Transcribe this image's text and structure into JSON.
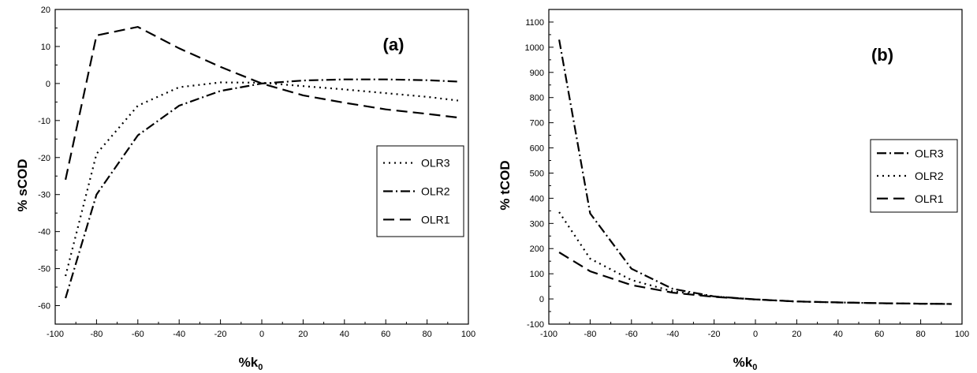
{
  "chart_data": [
    {
      "type": "line",
      "panel_label": "(a)",
      "xlabel": "%k0",
      "ylabel": "% sCOD",
      "xlim": [
        -100,
        100
      ],
      "ylim": [
        -65,
        20
      ],
      "xticks": [
        -100,
        -80,
        -60,
        -40,
        -20,
        0,
        20,
        40,
        60,
        80,
        100
      ],
      "yticks": [
        -60,
        -50,
        -40,
        -30,
        -20,
        -10,
        0,
        10,
        20
      ],
      "legend_position": "right",
      "series": [
        {
          "name": "OLR3",
          "style": "dotted",
          "x": [
            -95,
            -80,
            -60,
            -40,
            -20,
            0,
            20,
            40,
            60,
            80,
            95
          ],
          "y": [
            -52,
            -19,
            -6,
            -1,
            0.3,
            0.2,
            -0.7,
            -1.6,
            -2.6,
            -3.6,
            -4.6
          ]
        },
        {
          "name": "OLR2",
          "style": "dashdot",
          "x": [
            -95,
            -80,
            -60,
            -40,
            -20,
            0,
            20,
            40,
            60,
            80,
            95
          ],
          "y": [
            -58,
            -30,
            -14,
            -6,
            -2,
            0,
            0.8,
            1.1,
            1.1,
            0.9,
            0.5
          ]
        },
        {
          "name": "OLR1",
          "style": "dashed",
          "x": [
            -95,
            -80,
            -60,
            -40,
            -20,
            0,
            20,
            40,
            60,
            80,
            95
          ],
          "y": [
            -26,
            13,
            15.3,
            9.5,
            4.5,
            0,
            -3.2,
            -5.2,
            -7,
            -8.2,
            -9.2
          ]
        }
      ]
    },
    {
      "type": "line",
      "panel_label": "(b)",
      "xlabel": "%k0",
      "ylabel": "% tCOD",
      "xlim": [
        -100,
        100
      ],
      "ylim": [
        -100,
        1150
      ],
      "xticks": [
        -100,
        -80,
        -60,
        -40,
        -20,
        0,
        20,
        40,
        60,
        80,
        100
      ],
      "yticks": [
        -100,
        0,
        100,
        200,
        300,
        400,
        500,
        600,
        700,
        800,
        900,
        1000,
        1100
      ],
      "legend_position": "right",
      "series": [
        {
          "name": "OLR3",
          "style": "dashdot",
          "x": [
            -95,
            -80,
            -60,
            -40,
            -20,
            0,
            20,
            40,
            60,
            80,
            95
          ],
          "y": [
            1030,
            340,
            120,
            40,
            10,
            -2,
            -10,
            -14,
            -17,
            -19,
            -20
          ]
        },
        {
          "name": "OLR2",
          "style": "dotted",
          "x": [
            -95,
            -80,
            -60,
            -40,
            -20,
            0,
            20,
            40,
            60,
            80,
            95
          ],
          "y": [
            345,
            160,
            75,
            30,
            10,
            -2,
            -10,
            -14,
            -17,
            -19,
            -20
          ]
        },
        {
          "name": "OLR1",
          "style": "dashed",
          "x": [
            -95,
            -80,
            -60,
            -40,
            -20,
            0,
            20,
            40,
            60,
            80,
            95
          ],
          "y": [
            185,
            110,
            55,
            25,
            8,
            -2,
            -10,
            -14,
            -17,
            -19,
            -20
          ]
        }
      ]
    }
  ]
}
